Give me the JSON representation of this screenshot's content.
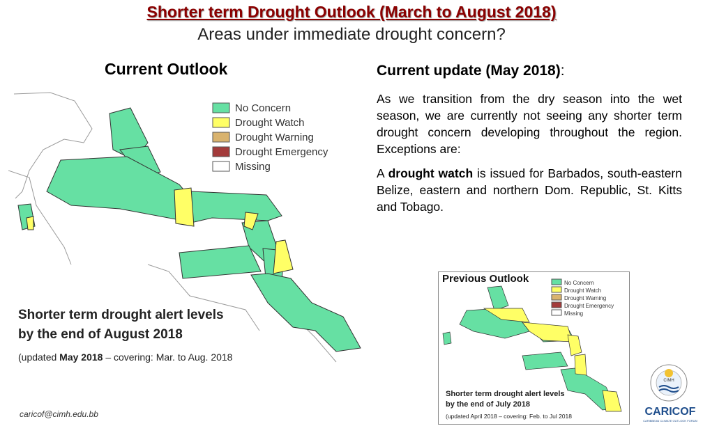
{
  "title": "Shorter term Drought Outlook (March to August 2018)",
  "subtitle": "Areas under immediate drought concern?",
  "current_outlook": {
    "heading": "Current Outlook",
    "legend": [
      "No Concern",
      "Drought Watch",
      "Drought Warning",
      "Drought Emergency",
      "Missing"
    ],
    "caption_line1": "Shorter term drought alert levels",
    "caption_line2": "by the end of August 2018",
    "caption_updated_prefix": "(updated ",
    "caption_updated_bold": "May 2018",
    "caption_updated_suffix": " – covering: Mar. to Aug. 2018"
  },
  "update": {
    "heading": "Current update (May 2018)",
    "colon": ":",
    "paragraph1": "As we transition from the dry season into the wet season, we are currently not seeing any shorter term drought concern developing throughout the region. Exceptions are:",
    "paragraph2_prefix": "A ",
    "paragraph2_bold": "drought watch",
    "paragraph2_suffix": " is issued for Barbados, south-eastern Belize, eastern and northern Dom. Republic, St. Kitts and Tobago."
  },
  "previous_outlook": {
    "heading": "Previous Outlook",
    "legend": [
      "No Concern",
      "Drought Watch",
      "Drought Warning",
      "Drought Emergency",
      "Missing"
    ],
    "caption_line1": "Shorter term drought alert levels",
    "caption_line2": "by the end of July 2018",
    "caption_updated": "(updated April 2018 – covering: Feb. to Jul 2018"
  },
  "footer": {
    "email": "caricof@cimh.edu.bb",
    "logo_text": "CARICOF",
    "logo_subtext": "CARIBBEAN CLIMATE OUTLOOK FORUM",
    "seal_text": "CIMH"
  },
  "colors": {
    "no_concern": "#66e0a3",
    "drought_watch": "#ffff66",
    "drought_warning": "#d9b36e",
    "drought_emergency": "#a33b3b",
    "title": "#8b0000",
    "logo": "#1f4e8c"
  }
}
